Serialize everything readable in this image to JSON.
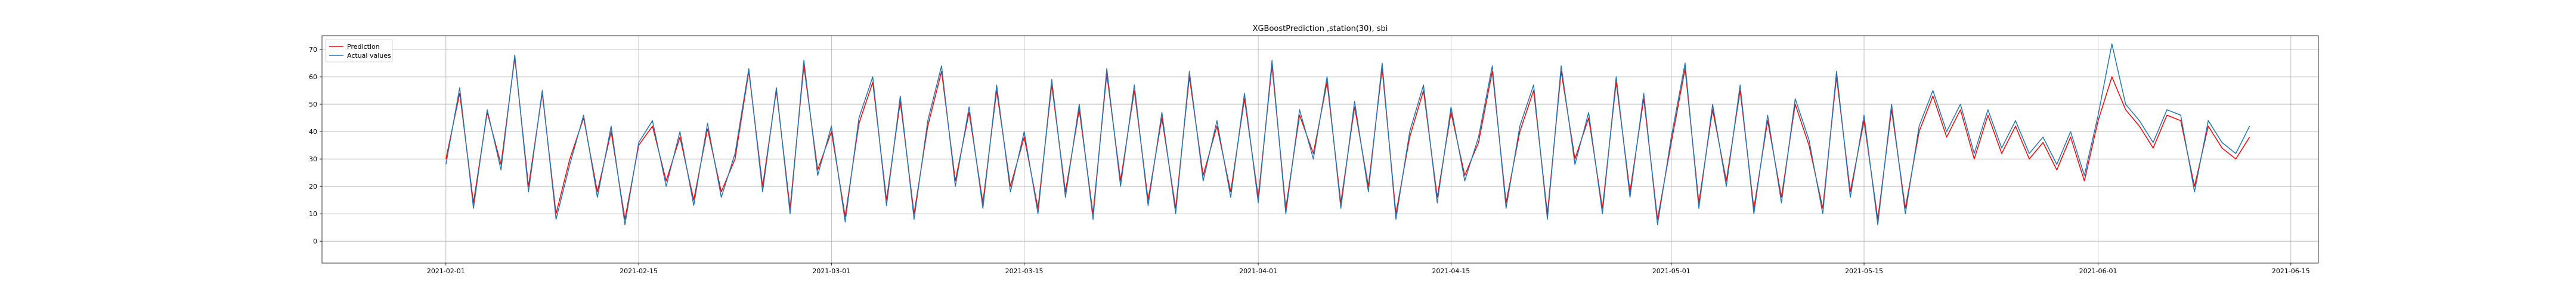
{
  "chart_data": {
    "type": "line",
    "title": "XGBoostPrediction ,station(30), sbi",
    "xlabel": "",
    "ylabel": "",
    "x_axis_type": "date",
    "xlim": [
      "2021-01-23",
      "2021-06-17"
    ],
    "ylim": [
      -8,
      75
    ],
    "x_ticks": [
      "2021-02-01",
      "2021-02-15",
      "2021-03-01",
      "2021-03-15",
      "2021-04-01",
      "2021-04-15",
      "2021-05-01",
      "2021-05-15",
      "2021-06-01",
      "2021-06-15"
    ],
    "y_ticks": [
      0,
      10,
      20,
      30,
      40,
      50,
      60,
      70
    ],
    "grid": true,
    "legend_position": "top-left",
    "series": [
      {
        "name": "Prediction",
        "color": "#ff0000",
        "x": [
          "2021-02-01",
          "2021-02-02",
          "2021-02-03",
          "2021-02-04",
          "2021-02-05",
          "2021-02-06",
          "2021-02-07",
          "2021-02-08",
          "2021-02-09",
          "2021-02-10",
          "2021-02-11",
          "2021-02-12",
          "2021-02-13",
          "2021-02-14",
          "2021-02-15",
          "2021-02-16",
          "2021-02-17",
          "2021-02-18",
          "2021-02-19",
          "2021-02-20",
          "2021-02-21",
          "2021-02-22",
          "2021-02-23",
          "2021-02-24",
          "2021-02-25",
          "2021-02-26",
          "2021-02-27",
          "2021-02-28",
          "2021-03-01",
          "2021-03-02",
          "2021-03-03",
          "2021-03-04",
          "2021-03-05",
          "2021-03-06",
          "2021-03-07",
          "2021-03-08",
          "2021-03-09",
          "2021-03-10",
          "2021-03-11",
          "2021-03-12",
          "2021-03-13",
          "2021-03-14",
          "2021-03-15",
          "2021-03-16",
          "2021-03-17",
          "2021-03-18",
          "2021-03-19",
          "2021-03-20",
          "2021-03-21",
          "2021-03-22",
          "2021-03-23",
          "2021-03-24",
          "2021-03-25",
          "2021-03-26",
          "2021-03-27",
          "2021-03-28",
          "2021-03-29",
          "2021-03-30",
          "2021-03-31",
          "2021-04-01",
          "2021-04-02",
          "2021-04-03",
          "2021-04-04",
          "2021-04-05",
          "2021-04-06",
          "2021-04-07",
          "2021-04-08",
          "2021-04-09",
          "2021-04-10",
          "2021-04-11",
          "2021-04-12",
          "2021-04-13",
          "2021-04-14",
          "2021-04-15",
          "2021-04-16",
          "2021-04-17",
          "2021-04-18",
          "2021-04-19",
          "2021-04-20",
          "2021-04-21",
          "2021-04-22",
          "2021-04-23",
          "2021-04-24",
          "2021-04-25",
          "2021-04-26",
          "2021-04-27",
          "2021-04-28",
          "2021-04-29",
          "2021-04-30",
          "2021-05-01",
          "2021-05-02",
          "2021-05-03",
          "2021-05-04",
          "2021-05-05",
          "2021-05-06",
          "2021-05-07",
          "2021-05-08",
          "2021-05-09",
          "2021-05-10",
          "2021-05-11",
          "2021-05-12",
          "2021-05-13",
          "2021-05-14",
          "2021-05-15",
          "2021-05-16",
          "2021-05-17",
          "2021-05-18",
          "2021-05-19",
          "2021-05-20",
          "2021-05-21",
          "2021-05-22",
          "2021-05-23",
          "2021-05-24",
          "2021-05-25",
          "2021-05-26",
          "2021-05-27",
          "2021-05-28",
          "2021-05-29",
          "2021-05-30",
          "2021-05-31",
          "2021-06-01",
          "2021-06-02",
          "2021-06-03",
          "2021-06-04",
          "2021-06-05",
          "2021-06-06",
          "2021-06-07",
          "2021-06-08",
          "2021-06-09",
          "2021-06-10",
          "2021-06-11",
          "2021-06-12"
        ],
        "values": [
          30,
          54,
          14,
          47,
          28,
          67,
          20,
          54,
          10,
          30,
          45,
          18,
          40,
          8,
          35,
          42,
          22,
          38,
          15,
          41,
          18,
          30,
          62,
          20,
          55,
          12,
          64,
          26,
          40,
          9,
          43,
          58,
          15,
          51,
          10,
          42,
          62,
          22,
          47,
          14,
          55,
          20,
          38,
          12,
          57,
          18,
          48,
          10,
          61,
          22,
          55,
          15,
          45,
          12,
          60,
          24,
          42,
          18,
          52,
          16,
          64,
          12,
          46,
          32,
          58,
          14,
          49,
          20,
          63,
          10,
          38,
          55,
          16,
          47,
          24,
          36,
          62,
          14,
          40,
          55,
          10,
          62,
          30,
          45,
          12,
          58,
          18,
          52,
          8,
          36,
          63,
          14,
          48,
          22,
          55,
          12,
          44,
          16,
          50,
          35,
          12,
          60,
          18,
          44,
          8,
          48,
          12,
          40,
          53,
          38,
          48,
          30,
          46,
          32,
          42,
          30,
          36,
          26,
          38,
          22,
          44,
          60,
          48,
          42,
          34,
          46,
          44,
          20,
          42,
          34,
          30,
          38
        ]
      },
      {
        "name": "Actual values",
        "color": "#1f77b4",
        "x": [
          "2021-02-01",
          "2021-02-02",
          "2021-02-03",
          "2021-02-04",
          "2021-02-05",
          "2021-02-06",
          "2021-02-07",
          "2021-02-08",
          "2021-02-09",
          "2021-02-10",
          "2021-02-11",
          "2021-02-12",
          "2021-02-13",
          "2021-02-14",
          "2021-02-15",
          "2021-02-16",
          "2021-02-17",
          "2021-02-18",
          "2021-02-19",
          "2021-02-20",
          "2021-02-21",
          "2021-02-22",
          "2021-02-23",
          "2021-02-24",
          "2021-02-25",
          "2021-02-26",
          "2021-02-27",
          "2021-02-28",
          "2021-03-01",
          "2021-03-02",
          "2021-03-03",
          "2021-03-04",
          "2021-03-05",
          "2021-03-06",
          "2021-03-07",
          "2021-03-08",
          "2021-03-09",
          "2021-03-10",
          "2021-03-11",
          "2021-03-12",
          "2021-03-13",
          "2021-03-14",
          "2021-03-15",
          "2021-03-16",
          "2021-03-17",
          "2021-03-18",
          "2021-03-19",
          "2021-03-20",
          "2021-03-21",
          "2021-03-22",
          "2021-03-23",
          "2021-03-24",
          "2021-03-25",
          "2021-03-26",
          "2021-03-27",
          "2021-03-28",
          "2021-03-29",
          "2021-03-30",
          "2021-03-31",
          "2021-04-01",
          "2021-04-02",
          "2021-04-03",
          "2021-04-04",
          "2021-04-05",
          "2021-04-06",
          "2021-04-07",
          "2021-04-08",
          "2021-04-09",
          "2021-04-10",
          "2021-04-11",
          "2021-04-12",
          "2021-04-13",
          "2021-04-14",
          "2021-04-15",
          "2021-04-16",
          "2021-04-17",
          "2021-04-18",
          "2021-04-19",
          "2021-04-20",
          "2021-04-21",
          "2021-04-22",
          "2021-04-23",
          "2021-04-24",
          "2021-04-25",
          "2021-04-26",
          "2021-04-27",
          "2021-04-28",
          "2021-04-29",
          "2021-04-30",
          "2021-05-01",
          "2021-05-02",
          "2021-05-03",
          "2021-05-04",
          "2021-05-05",
          "2021-05-06",
          "2021-05-07",
          "2021-05-08",
          "2021-05-09",
          "2021-05-10",
          "2021-05-11",
          "2021-05-12",
          "2021-05-13",
          "2021-05-14",
          "2021-05-15",
          "2021-05-16",
          "2021-05-17",
          "2021-05-18",
          "2021-05-19",
          "2021-05-20",
          "2021-05-21",
          "2021-05-22",
          "2021-05-23",
          "2021-05-24",
          "2021-05-25",
          "2021-05-26",
          "2021-05-27",
          "2021-05-28",
          "2021-05-29",
          "2021-05-30",
          "2021-05-31",
          "2021-06-01",
          "2021-06-02",
          "2021-06-03",
          "2021-06-04",
          "2021-06-05",
          "2021-06-06",
          "2021-06-07",
          "2021-06-08",
          "2021-06-09",
          "2021-06-10",
          "2021-06-11",
          "2021-06-12"
        ],
        "values": [
          28,
          56,
          12,
          48,
          26,
          68,
          18,
          55,
          8,
          28,
          46,
          16,
          42,
          6,
          36,
          44,
          20,
          40,
          13,
          43,
          16,
          32,
          63,
          18,
          56,
          10,
          66,
          24,
          42,
          7,
          45,
          60,
          13,
          53,
          8,
          44,
          64,
          20,
          49,
          12,
          57,
          18,
          40,
          10,
          59,
          16,
          50,
          8,
          63,
          20,
          57,
          13,
          47,
          10,
          62,
          22,
          44,
          16,
          54,
          14,
          66,
          10,
          48,
          30,
          60,
          12,
          51,
          18,
          65,
          8,
          40,
          57,
          14,
          49,
          22,
          38,
          64,
          12,
          42,
          57,
          8,
          64,
          28,
          47,
          10,
          60,
          16,
          54,
          6,
          38,
          65,
          12,
          50,
          20,
          57,
          10,
          46,
          14,
          52,
          37,
          10,
          62,
          16,
          46,
          6,
          50,
          10,
          42,
          55,
          40,
          50,
          32,
          48,
          34,
          44,
          32,
          38,
          28,
          40,
          24,
          46,
          72,
          50,
          44,
          36,
          48,
          46,
          18,
          44,
          36,
          32,
          42
        ]
      }
    ]
  }
}
